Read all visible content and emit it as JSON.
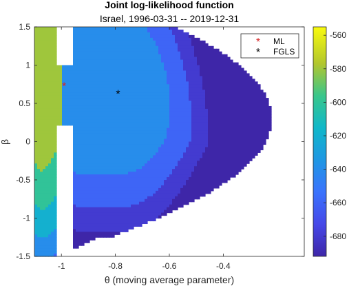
{
  "chart_data": {
    "type": "contour",
    "title": "Joint log-likelihood function",
    "subtitle": "Israel, 1996-03-31 -- 2019-12-31",
    "xlabel": "θ (moving average parameter)",
    "ylabel": "β",
    "xlim": [
      -1.1,
      -0.1
    ],
    "ylim": [
      -1.5,
      1.5
    ],
    "xticks": [
      "-1",
      "-0.8",
      "-0.6",
      "-0.4"
    ],
    "xtick_values": [
      -1,
      -0.8,
      -0.6,
      -0.4
    ],
    "yticks": [
      "1.5",
      "1",
      "0.5",
      "0",
      "-0.5",
      "-1",
      "-1.5"
    ],
    "ytick_values": [
      1.5,
      1,
      0.5,
      0,
      -0.5,
      -1,
      -1.5
    ],
    "colorbar": {
      "ticks": [
        "-560",
        "-580",
        "-600",
        "-620",
        "-640",
        "-660",
        "-680"
      ],
      "tick_values": [
        -560,
        -580,
        -600,
        -620,
        -640,
        -660,
        -680
      ],
      "range": [
        -692,
        -555
      ],
      "colormap": "parula"
    },
    "contour_levels": [
      -690,
      -670,
      -650,
      -630,
      -610,
      -590,
      -570
    ],
    "points": [
      {
        "name": "ML",
        "x": -0.99,
        "y": 0.73,
        "marker": "*",
        "color": "#d62728"
      },
      {
        "name": "FGLS",
        "x": -0.79,
        "y": 0.63,
        "marker": "*",
        "color": "#000000"
      }
    ],
    "legend": {
      "position": "top-right",
      "entries": [
        "ML",
        "FGLS"
      ]
    },
    "grid": false
  }
}
